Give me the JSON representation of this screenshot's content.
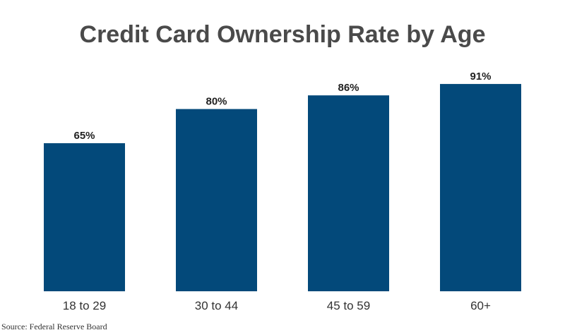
{
  "chart_data": {
    "type": "bar",
    "title": "Credit Card Ownership Rate by Age",
    "categories": [
      "18 to 29",
      "30 to 44",
      "45 to 59",
      "60+"
    ],
    "values": [
      65,
      80,
      86,
      91
    ],
    "value_labels": [
      "65%",
      "80%",
      "86%",
      "91%"
    ],
    "ylim": [
      0,
      100
    ],
    "grid": false,
    "bar_color": "#03497a",
    "xlabel": "",
    "ylabel": ""
  },
  "source": "Source: Federal Reserve Board"
}
